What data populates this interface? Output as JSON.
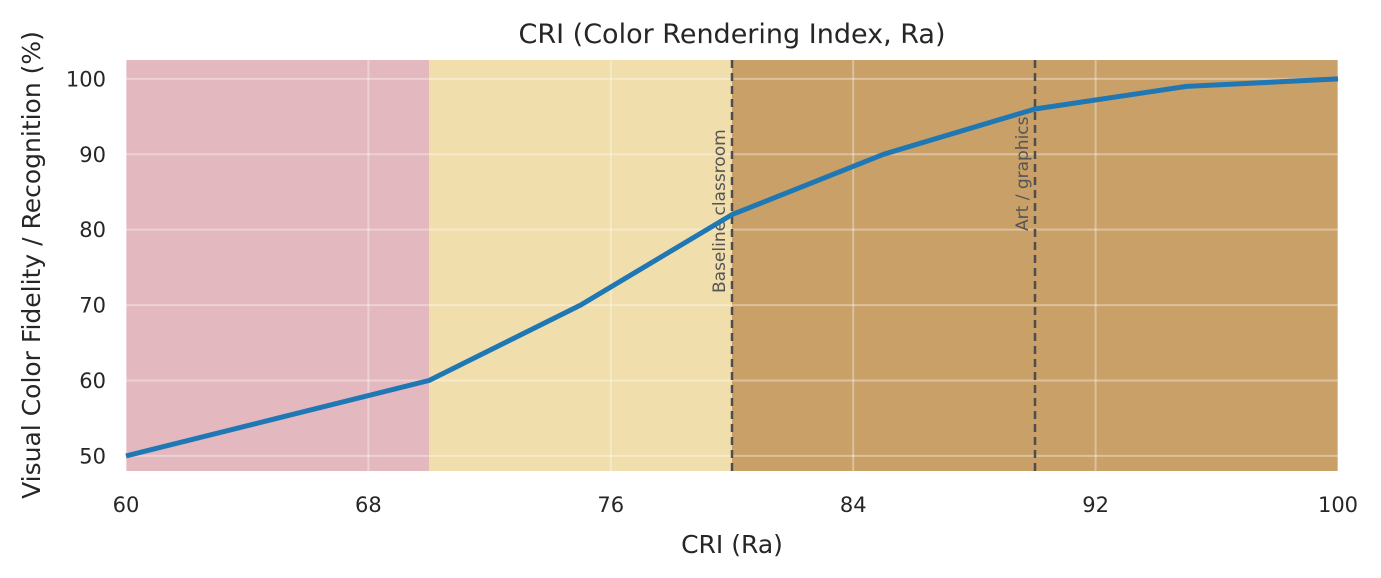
{
  "chart_data": {
    "type": "line",
    "title": "CRI (Color Rendering Index, Ra)",
    "xlabel": "CRI (Ra)",
    "ylabel": "Visual Color Fidelity / Recognition (%)",
    "xlim": [
      60,
      100
    ],
    "ylim": [
      48,
      102.5
    ],
    "xticks": [
      60,
      68,
      76,
      84,
      92,
      100
    ],
    "yticks": [
      50,
      60,
      70,
      80,
      90,
      100
    ],
    "grid": true,
    "series": [
      {
        "color": "#1f77b4",
        "x": [
          60,
          65,
          70,
          75,
          80,
          85,
          90,
          95,
          100
        ],
        "y": [
          50,
          55,
          60,
          70,
          82,
          90,
          96,
          99,
          100
        ]
      }
    ],
    "bands": [
      {
        "from": 60,
        "to": 70,
        "color": "#e3b8bf"
      },
      {
        "from": 70,
        "to": 80,
        "color": "#f1dead"
      },
      {
        "from": 80,
        "to": 100,
        "color": "#c9a067"
      }
    ],
    "reference_lines": [
      {
        "x": 80,
        "label": "Baseline classroom"
      },
      {
        "x": 90,
        "label": "Art / graphics"
      }
    ]
  }
}
